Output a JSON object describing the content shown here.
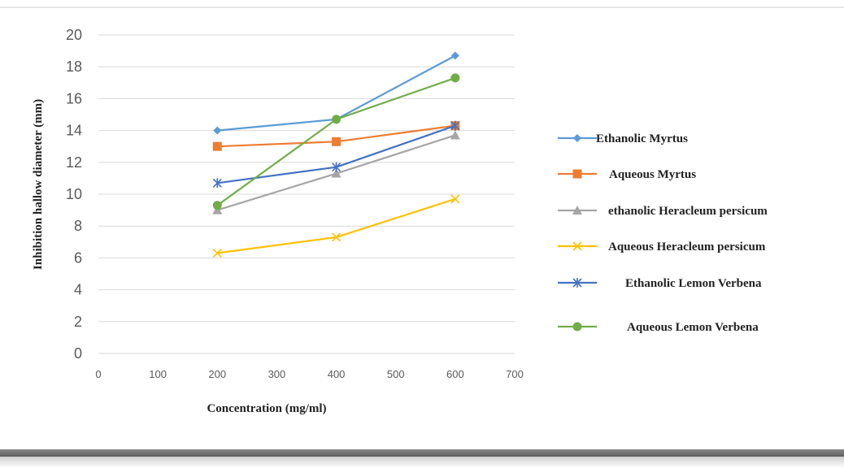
{
  "chart_data": {
    "type": "line",
    "title": "",
    "xlabel": "Concentration (mg/ml)",
    "ylabel": "Inhibition hallow diameter (mm)",
    "xlim": [
      0,
      700
    ],
    "ylim": [
      0,
      20
    ],
    "x_ticks": [
      "0",
      "100",
      "200",
      "300",
      "400",
      "500",
      "600",
      "700"
    ],
    "y_ticks": [
      "0",
      "2",
      "4",
      "6",
      "8",
      "10",
      "12",
      "14",
      "16",
      "18",
      "20"
    ],
    "grid": "horizontal",
    "legend_position": "right",
    "series": [
      {
        "name": "Ethanolic Myrtus",
        "color": "#5B9BD5",
        "marker": "diamond",
        "x": [
          200,
          400,
          600
        ],
        "y": [
          14.0,
          14.7,
          18.7
        ]
      },
      {
        "name": "Aqueous Myrtus",
        "color": "#ED7D31",
        "marker": "square",
        "x": [
          200,
          400,
          600
        ],
        "y": [
          13.0,
          13.3,
          14.3
        ]
      },
      {
        "name": "ethanolic Heracleum persicum",
        "color": "#A5A5A5",
        "marker": "triangle",
        "x": [
          200,
          400,
          600
        ],
        "y": [
          9.0,
          11.3,
          13.7
        ]
      },
      {
        "name": "Aqueous Heracleum persicum",
        "color": "#FFC000",
        "marker": "x",
        "x": [
          200,
          400,
          600
        ],
        "y": [
          6.3,
          7.3,
          9.7
        ]
      },
      {
        "name": "Ethanolic Lemon Verbena",
        "color": "#4472C4",
        "marker": "asterisk",
        "x": [
          200,
          400,
          600
        ],
        "y": [
          10.7,
          11.7,
          14.3
        ]
      },
      {
        "name": "Aqueous Lemon Verbena",
        "color": "#70AD47",
        "marker": "circle",
        "x": [
          200,
          400,
          600
        ],
        "y": [
          9.3,
          14.7,
          17.3
        ]
      }
    ]
  }
}
